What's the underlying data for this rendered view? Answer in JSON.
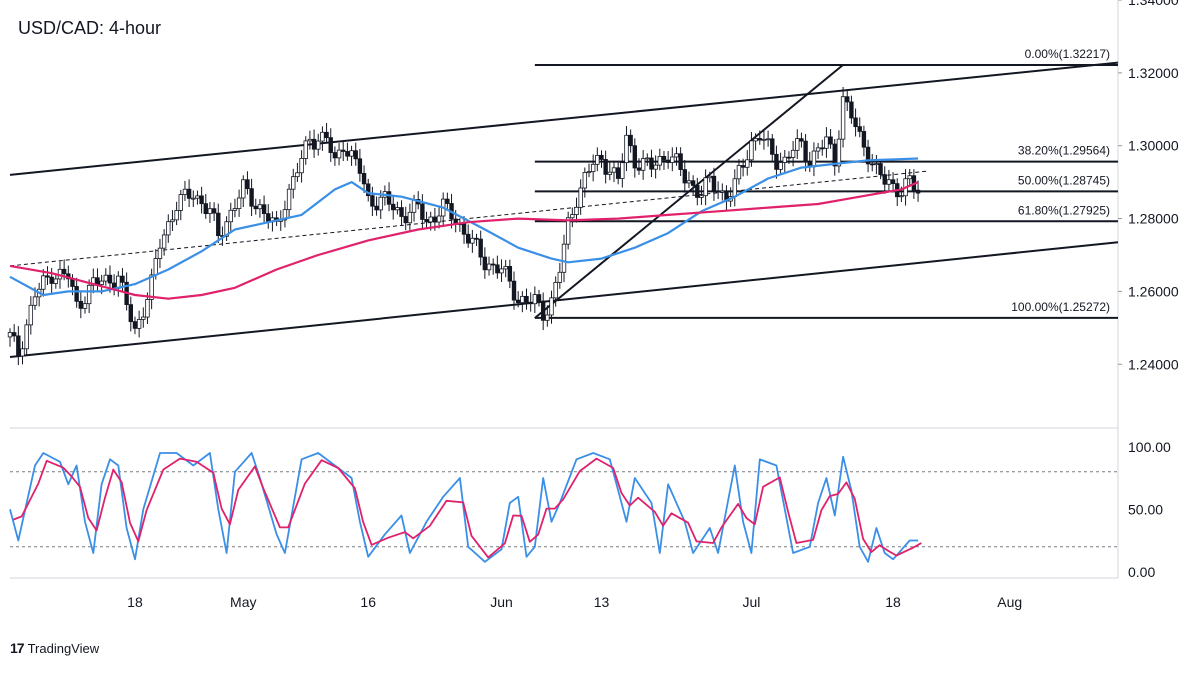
{
  "header": {
    "title": "USD/CAD: 4-hour"
  },
  "brand": {
    "logo": "17",
    "name": "TradingView"
  },
  "chart_data": {
    "type": "candlestick",
    "title": "USD/CAD: 4-hour",
    "x_axis": {
      "ticks": [
        {
          "label": "18",
          "day": 18
        },
        {
          "label": "May",
          "day": 31
        },
        {
          "label": "16",
          "day": 46
        },
        {
          "label": "Jun",
          "day": 62
        },
        {
          "label": "13",
          "day": 74
        },
        {
          "label": "Jul",
          "day": 92
        },
        {
          "label": "18",
          "day": 109
        },
        {
          "label": "Aug",
          "day": 123
        }
      ],
      "range": [
        3,
        136
      ]
    },
    "price_axis": {
      "range": [
        1.2225,
        1.34
      ],
      "ticks": [
        "1.24000",
        "1.26000",
        "1.28000",
        "1.30000",
        "1.32000",
        "1.34000"
      ]
    },
    "close_path": [
      [
        3,
        1.2475
      ],
      [
        4,
        1.243
      ],
      [
        6,
        1.259
      ],
      [
        8,
        1.265
      ],
      [
        10,
        1.264
      ],
      [
        11,
        1.256
      ],
      [
        13,
        1.262
      ],
      [
        16,
        1.264
      ],
      [
        17,
        1.256
      ],
      [
        18,
        1.249
      ],
      [
        20,
        1.262
      ],
      [
        21,
        1.273
      ],
      [
        23,
        1.284
      ],
      [
        25,
        1.287
      ],
      [
        27,
        1.282
      ],
      [
        28,
        1.275
      ],
      [
        30,
        1.284
      ],
      [
        31,
        1.288
      ],
      [
        33,
        1.283
      ],
      [
        35,
        1.277
      ],
      [
        36,
        1.285
      ],
      [
        38,
        1.296
      ],
      [
        39,
        1.302
      ],
      [
        41,
        1.302
      ],
      [
        42,
        1.295
      ],
      [
        43,
        1.301
      ],
      [
        44,
        1.297
      ],
      [
        45,
        1.293
      ],
      [
        46,
        1.285
      ],
      [
        48,
        1.285
      ],
      [
        50,
        1.281
      ],
      [
        52,
        1.283
      ],
      [
        53,
        1.279
      ],
      [
        55,
        1.283
      ],
      [
        56,
        1.281
      ],
      [
        58,
        1.275
      ],
      [
        60,
        1.268
      ],
      [
        62,
        1.266
      ],
      [
        64,
        1.258
      ],
      [
        66,
        1.257
      ],
      [
        67,
        1.254
      ],
      [
        68,
        1.2575
      ],
      [
        69,
        1.266
      ],
      [
        70,
        1.278
      ],
      [
        71,
        1.286
      ],
      [
        72,
        1.291
      ],
      [
        73,
        1.295
      ],
      [
        74,
        1.296
      ],
      [
        75,
        1.294
      ],
      [
        76,
        1.29
      ],
      [
        77,
        1.302
      ],
      [
        78,
        1.296
      ],
      [
        79,
        1.295
      ],
      [
        80,
        1.294
      ],
      [
        81,
        1.296
      ],
      [
        82,
        1.298
      ],
      [
        83,
        1.295
      ],
      [
        84,
        1.291
      ],
      [
        85,
        1.289
      ],
      [
        86,
        1.287
      ],
      [
        87,
        1.29
      ],
      [
        88,
        1.288
      ],
      [
        89,
        1.286
      ],
      [
        90,
        1.289
      ],
      [
        91,
        1.295
      ],
      [
        92,
        1.301
      ],
      [
        93,
        1.303
      ],
      [
        94,
        1.299
      ],
      [
        95,
        1.296
      ],
      [
        96,
        1.296
      ],
      [
        97,
        1.299
      ],
      [
        98,
        1.3
      ],
      [
        99,
        1.296
      ],
      [
        100,
        1.299
      ],
      [
        101,
        1.301
      ],
      [
        102,
        1.296
      ],
      [
        103,
        1.313
      ],
      [
        104,
        1.308
      ],
      [
        105,
        1.302
      ],
      [
        106,
        1.298
      ],
      [
        107,
        1.293
      ],
      [
        108,
        1.29
      ],
      [
        109,
        1.289
      ],
      [
        110,
        1.288
      ],
      [
        111,
        1.29
      ],
      [
        112,
        1.287
      ]
    ],
    "series": [
      {
        "name": "blue-ma",
        "color": "#3a8fe6",
        "points": [
          [
            3,
            1.264
          ],
          [
            7,
            1.259
          ],
          [
            10,
            1.26
          ],
          [
            14,
            1.26
          ],
          [
            18,
            1.262
          ],
          [
            22,
            1.266
          ],
          [
            26,
            1.271
          ],
          [
            30,
            1.277
          ],
          [
            34,
            1.279
          ],
          [
            38,
            1.281
          ],
          [
            42,
            1.288
          ],
          [
            44,
            1.29
          ],
          [
            46,
            1.287
          ],
          [
            50,
            1.286
          ],
          [
            55,
            1.283
          ],
          [
            60,
            1.277
          ],
          [
            64,
            1.272
          ],
          [
            68,
            1.269
          ],
          [
            70,
            1.268
          ],
          [
            74,
            1.269
          ],
          [
            78,
            1.272
          ],
          [
            82,
            1.276
          ],
          [
            86,
            1.282
          ],
          [
            90,
            1.286
          ],
          [
            94,
            1.291
          ],
          [
            98,
            1.294
          ],
          [
            102,
            1.295
          ],
          [
            106,
            1.296
          ],
          [
            112,
            1.2965
          ]
        ]
      },
      {
        "name": "pink-ma",
        "color": "#e0216b",
        "points": [
          [
            3,
            1.267
          ],
          [
            8,
            1.265
          ],
          [
            13,
            1.262
          ],
          [
            18,
            1.259
          ],
          [
            22,
            1.258
          ],
          [
            26,
            1.259
          ],
          [
            30,
            1.261
          ],
          [
            35,
            1.266
          ],
          [
            40,
            1.27
          ],
          [
            46,
            1.274
          ],
          [
            52,
            1.277
          ],
          [
            58,
            1.279
          ],
          [
            64,
            1.28
          ],
          [
            70,
            1.2795
          ],
          [
            76,
            1.28
          ],
          [
            82,
            1.281
          ],
          [
            88,
            1.282
          ],
          [
            94,
            1.283
          ],
          [
            100,
            1.284
          ],
          [
            105,
            1.286
          ],
          [
            110,
            1.288
          ],
          [
            112,
            1.29
          ]
        ]
      }
    ],
    "trendlines": [
      {
        "name": "channel-top",
        "from": [
          3,
          1.292
        ],
        "to": [
          136,
          1.3228
        ]
      },
      {
        "name": "channel-bottom",
        "from": [
          3,
          1.242
        ],
        "to": [
          136,
          1.2735
        ]
      },
      {
        "name": "fib-diagonal",
        "from": [
          66,
          1.2527
        ],
        "to": [
          103,
          1.3222
        ]
      },
      {
        "name": "midline-dashed",
        "from": [
          3,
          1.267
        ],
        "to": [
          113,
          1.293
        ],
        "dashed": true
      }
    ],
    "fibonacci": {
      "x_range": [
        66,
        136
      ],
      "levels": [
        {
          "label": "0.00%(1.32217)",
          "price": 1.32217
        },
        {
          "label": "38.20%(1.29564)",
          "price": 1.29564
        },
        {
          "label": "50.00%(1.28745)",
          "price": 1.28745
        },
        {
          "label": "61.80%(1.27925)",
          "price": 1.27925
        },
        {
          "label": "100.00%(1.25272)",
          "price": 1.25272
        }
      ]
    },
    "stochastic": {
      "range": [
        -5,
        115
      ],
      "ticks": [
        "0.00",
        "50.00",
        "100.00"
      ],
      "overbought": 80,
      "oversold": 20,
      "k_color": "#3a8fe6",
      "d_color": "#e0216b",
      "points": [
        [
          3,
          50
        ],
        [
          4,
          25
        ],
        [
          6,
          85
        ],
        [
          7,
          95
        ],
        [
          9,
          88
        ],
        [
          10,
          70
        ],
        [
          11,
          85
        ],
        [
          12,
          40
        ],
        [
          13,
          15
        ],
        [
          14,
          70
        ],
        [
          15,
          90
        ],
        [
          16,
          85
        ],
        [
          17,
          35
        ],
        [
          18,
          10
        ],
        [
          19,
          50
        ],
        [
          21,
          95
        ],
        [
          23,
          95
        ],
        [
          25,
          85
        ],
        [
          27,
          95
        ],
        [
          28,
          50
        ],
        [
          29,
          15
        ],
        [
          30,
          80
        ],
        [
          32,
          95
        ],
        [
          33,
          75
        ],
        [
          35,
          30
        ],
        [
          36,
          15
        ],
        [
          38,
          90
        ],
        [
          40,
          95
        ],
        [
          42,
          85
        ],
        [
          44,
          75
        ],
        [
          45,
          40
        ],
        [
          46,
          12
        ],
        [
          48,
          30
        ],
        [
          50,
          45
        ],
        [
          51,
          15
        ],
        [
          53,
          40
        ],
        [
          55,
          60
        ],
        [
          57,
          75
        ],
        [
          58,
          20
        ],
        [
          60,
          8
        ],
        [
          62,
          18
        ],
        [
          63,
          55
        ],
        [
          64,
          60
        ],
        [
          65,
          12
        ],
        [
          66,
          20
        ],
        [
          67,
          75
        ],
        [
          68,
          40
        ],
        [
          69,
          55
        ],
        [
          71,
          90
        ],
        [
          73,
          95
        ],
        [
          75,
          90
        ],
        [
          76,
          65
        ],
        [
          77,
          40
        ],
        [
          78,
          75
        ],
        [
          80,
          55
        ],
        [
          81,
          15
        ],
        [
          82,
          70
        ],
        [
          84,
          40
        ],
        [
          85,
          15
        ],
        [
          87,
          35
        ],
        [
          88,
          15
        ],
        [
          90,
          85
        ],
        [
          91,
          40
        ],
        [
          92,
          15
        ],
        [
          93,
          90
        ],
        [
          95,
          85
        ],
        [
          96,
          50
        ],
        [
          97,
          15
        ],
        [
          99,
          20
        ],
        [
          100,
          55
        ],
        [
          101,
          75
        ],
        [
          102,
          45
        ],
        [
          103,
          92
        ],
        [
          104,
          65
        ],
        [
          105,
          20
        ],
        [
          106,
          8
        ],
        [
          107,
          35
        ],
        [
          108,
          15
        ],
        [
          109,
          10
        ],
        [
          111,
          25
        ],
        [
          112,
          25
        ]
      ]
    }
  }
}
